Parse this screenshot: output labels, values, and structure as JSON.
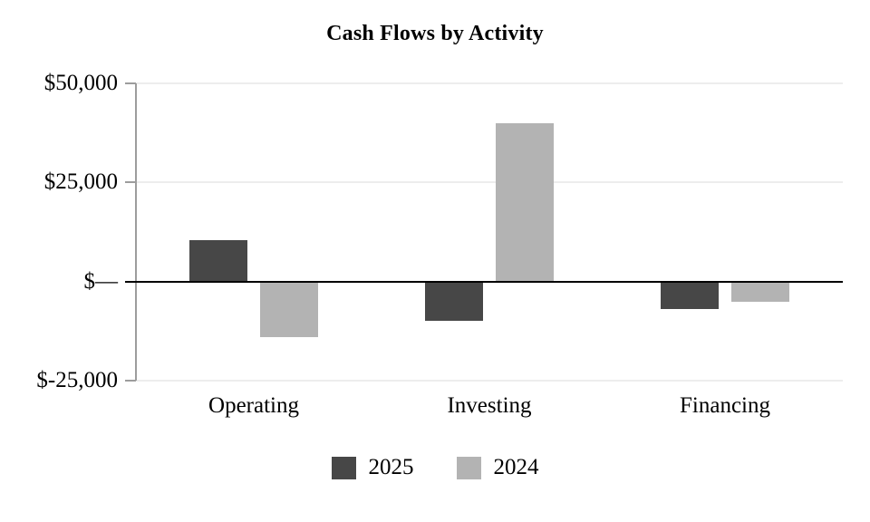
{
  "chart_data": {
    "type": "bar",
    "title": "Cash Flows by Activity",
    "categories": [
      "Operating",
      "Investing",
      "Financing"
    ],
    "series": [
      {
        "name": "2025",
        "color": "#474747",
        "values": [
          10500,
          -10000,
          -7000
        ]
      },
      {
        "name": "2024",
        "color": "#b3b3b3",
        "values": [
          -14000,
          40000,
          -5000
        ]
      }
    ],
    "ylim": [
      -25000,
      50000
    ],
    "yticks": [
      {
        "value": 50000,
        "label": "$50,000"
      },
      {
        "value": 25000,
        "label": "$25,000"
      },
      {
        "value": 0,
        "label": "$—"
      },
      {
        "value": -25000,
        "label": "$-25,000"
      }
    ],
    "grid": true,
    "legend_position": "bottom",
    "colors": {
      "background": "#ffffff",
      "text": "#000000",
      "gridline": "#ededed",
      "zero_line": "#000000",
      "axis_line": "#9d9d9d"
    }
  }
}
